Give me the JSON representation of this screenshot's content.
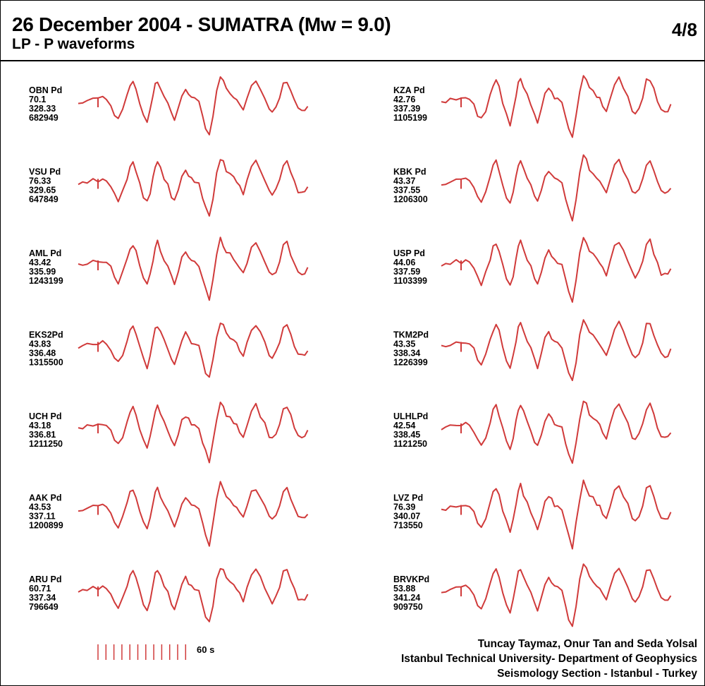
{
  "header": {
    "title": "26 December 2004 - SUMATRA (Mw = 9.0)",
    "subtitle": "LP - P waveforms",
    "page": "4/8"
  },
  "colors": {
    "trace": "#d03a3a",
    "text": "#000000"
  },
  "stations_left": [
    {
      "name": "OBN Pd",
      "v1": "70.1",
      "v2": "328.33",
      "v3": "682949"
    },
    {
      "name": "VSU Pd",
      "v1": "76.33",
      "v2": "329.65",
      "v3": "647849"
    },
    {
      "name": "AML Pd",
      "v1": "43.42",
      "v2": "335.99",
      "v3": "1243199"
    },
    {
      "name": "EKS2Pd",
      "v1": "43.83",
      "v2": "336.48",
      "v3": "1315500"
    },
    {
      "name": "UCH Pd",
      "v1": "43.18",
      "v2": "336.81",
      "v3": "1211250"
    },
    {
      "name": "AAK Pd",
      "v1": "43.53",
      "v2": "337.11",
      "v3": "1200899"
    },
    {
      "name": "ARU Pd",
      "v1": "60.71",
      "v2": "337.34",
      "v3": "796649"
    }
  ],
  "stations_right": [
    {
      "name": "KZA Pd",
      "v1": "42.76",
      "v2": "337.39",
      "v3": "1105199"
    },
    {
      "name": "KBK Pd",
      "v1": "43.37",
      "v2": "337.55",
      "v3": "1206300"
    },
    {
      "name": "USP Pd",
      "v1": "44.06",
      "v2": "337.59",
      "v3": "1103399"
    },
    {
      "name": "TKM2Pd",
      "v1": "43.35",
      "v2": "338.34",
      "v3": "1226399"
    },
    {
      "name": "ULHLPd",
      "v1": "42.54",
      "v2": "338.45",
      "v3": "1121250"
    },
    {
      "name": "LVZ Pd",
      "v1": "76.39",
      "v2": "340.07",
      "v3": "713550"
    },
    {
      "name": "BRVKPd",
      "v1": "53.88",
      "v2": "341.24",
      "v3": "909750"
    }
  ],
  "scale_bar": {
    "label": "60 s"
  },
  "credits": {
    "line1": "Tuncay Taymaz, Onur Tan and Seda Yolsal",
    "line2": "Istanbul Technical University- Department of Geophysics",
    "line3": "Seismology Section - Istanbul - Turkey"
  }
}
